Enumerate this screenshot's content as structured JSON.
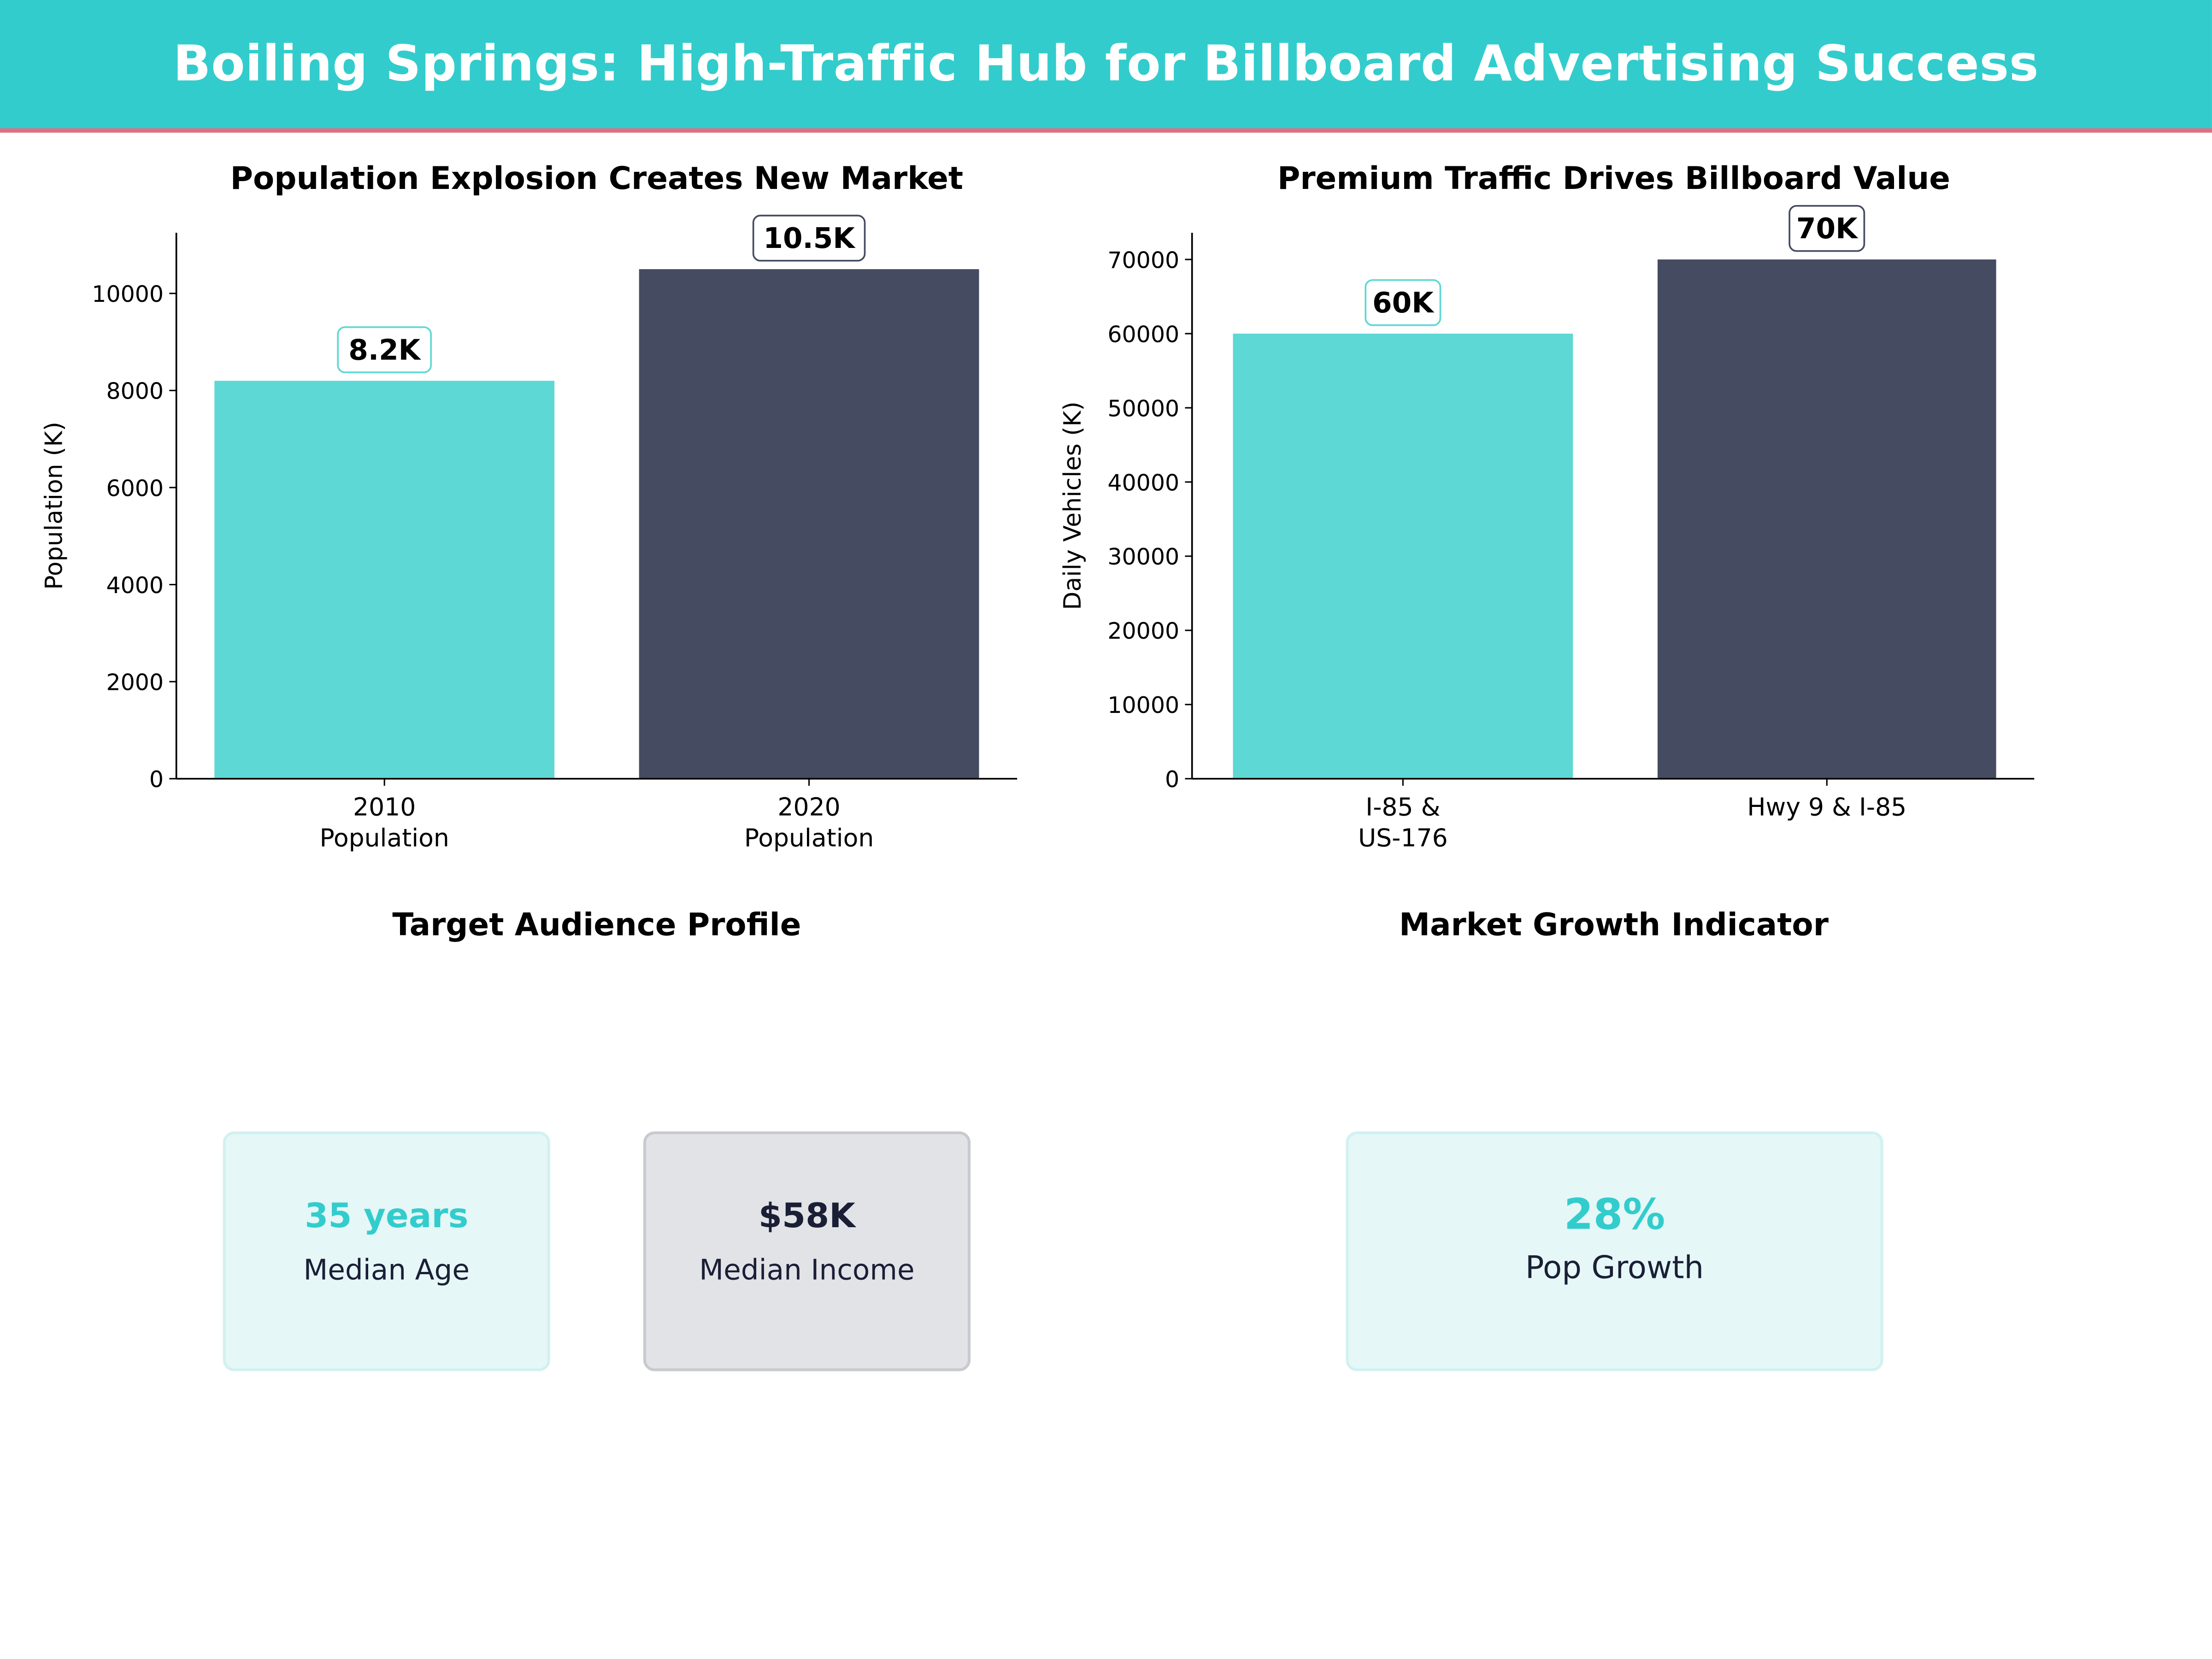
{
  "header": {
    "title": "Boiling Springs: High-Traffic Hub for Billboard Advertising Success"
  },
  "colors": {
    "header_bg": "#33CCCC",
    "header_accent": "#E86A7E",
    "teal": "#5DD8D5",
    "dark": "#454B60",
    "value_teal": "#33CCCC",
    "value_dark": "#1a1f36"
  },
  "chart_data": [
    {
      "type": "bar",
      "title": "Population Explosion Creates New Market",
      "xlabel": "",
      "ylabel": "Population (K)",
      "categories": [
        "2010\nPopulation",
        "2020\nPopulation"
      ],
      "category_lines": [
        [
          "2010",
          "Population"
        ],
        [
          "2020",
          "Population"
        ]
      ],
      "values": [
        8200,
        10500
      ],
      "data_labels": [
        "8.2K",
        "10.5K"
      ],
      "bar_colors": [
        "#5DD8D5",
        "#454B60"
      ],
      "yticks": [
        0,
        2000,
        4000,
        6000,
        8000,
        10000
      ],
      "ytick_labels": [
        "0",
        "2000",
        "4000",
        "6000",
        "8000",
        "10000"
      ],
      "ylim": [
        0,
        11250
      ],
      "grid": false
    },
    {
      "type": "bar",
      "title": "Premium Traffic Drives Billboard Value",
      "xlabel": "",
      "ylabel": "Daily Vehicles (K)",
      "categories": [
        "I-85 &\nUS-176",
        "Hwy 9 & I-85"
      ],
      "category_lines": [
        [
          "I-85 &",
          "US-176"
        ],
        [
          "Hwy 9 & I-85"
        ]
      ],
      "values": [
        60000,
        70000
      ],
      "data_labels": [
        "60K",
        "70K"
      ],
      "bar_colors": [
        "#5DD8D5",
        "#454B60"
      ],
      "yticks": [
        0,
        10000,
        20000,
        30000,
        40000,
        50000,
        60000,
        70000
      ],
      "ytick_labels": [
        "0",
        "10000",
        "20000",
        "30000",
        "40000",
        "50000",
        "60000",
        "70000"
      ],
      "ylim": [
        0,
        73600
      ],
      "grid": false
    }
  ],
  "audience": {
    "title": "Target Audience Profile",
    "cards": [
      {
        "value": "35  years",
        "label": "Median Age"
      },
      {
        "value": "$58K",
        "label": "Median Income"
      }
    ]
  },
  "growth": {
    "title": "Market Growth Indicator",
    "card": {
      "value": "28%",
      "label": "Pop Growth"
    }
  }
}
